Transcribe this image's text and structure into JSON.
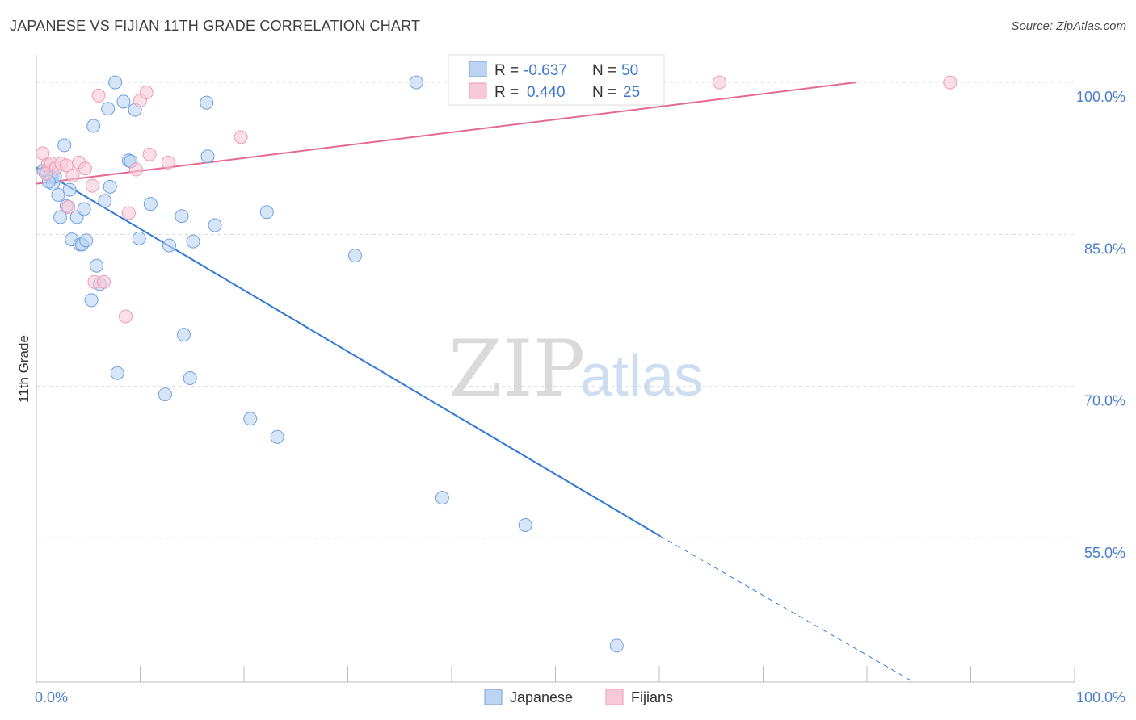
{
  "header": {
    "title": "JAPANESE VS FIJIAN 11TH GRADE CORRELATION CHART",
    "source": "Source: ZipAtlas.com"
  },
  "watermark": {
    "zip": "ZIP",
    "atlas": "atlas"
  },
  "chart_data": {
    "type": "scatter",
    "title": "JAPANESE VS FIJIAN 11TH GRADE CORRELATION CHART",
    "xlabel": "",
    "ylabel": "11th Grade",
    "xlim": [
      0,
      100
    ],
    "ylim": [
      40.8,
      101.8
    ],
    "x_tick_labels": [
      {
        "value": 0,
        "label": "0.0%"
      },
      {
        "value": 100,
        "label": "100.0%"
      }
    ],
    "y_tick_labels": [
      {
        "value": 100,
        "label": "100.0%"
      },
      {
        "value": 85,
        "label": "85.0%"
      },
      {
        "value": 70,
        "label": "70.0%"
      },
      {
        "value": 55,
        "label": "55.0%"
      }
    ],
    "y_gridlines": [
      100,
      85,
      70,
      55
    ],
    "grid": true,
    "legend_position": "bottom-center",
    "series": [
      {
        "name": "Japanese",
        "color": "#6fa0e0",
        "fill": "#bcd3f2",
        "line_color": "#3278d6",
        "R": "-0.637",
        "N": "50",
        "trend": {
          "x0": 0,
          "y0": 91.6,
          "x1": 60.1,
          "y1": 55.2,
          "dash_to_x": 84.5,
          "dash_to_y": 40.8
        },
        "points": [
          [
            0.7,
            91.3
          ],
          [
            1.0,
            91.2
          ],
          [
            1.3,
            90.8
          ],
          [
            1.5,
            90.6
          ],
          [
            1.6,
            90.0
          ],
          [
            1.8,
            90.7
          ],
          [
            2.1,
            88.9
          ],
          [
            2.3,
            86.7
          ],
          [
            2.7,
            93.8
          ],
          [
            2.9,
            87.8
          ],
          [
            3.2,
            89.4
          ],
          [
            3.4,
            84.5
          ],
          [
            3.9,
            86.7
          ],
          [
            4.2,
            84.0
          ],
          [
            4.4,
            84.0
          ],
          [
            4.6,
            87.5
          ],
          [
            4.8,
            84.4
          ],
          [
            5.3,
            78.5
          ],
          [
            5.5,
            95.7
          ],
          [
            5.8,
            81.9
          ],
          [
            6.1,
            80.1
          ],
          [
            6.6,
            88.3
          ],
          [
            6.9,
            97.4
          ],
          [
            7.1,
            89.7
          ],
          [
            7.6,
            100.0
          ],
          [
            7.8,
            71.3
          ],
          [
            8.4,
            98.1
          ],
          [
            8.9,
            92.3
          ],
          [
            9.1,
            92.2
          ],
          [
            9.5,
            97.3
          ],
          [
            9.9,
            84.6
          ],
          [
            11.0,
            88.0
          ],
          [
            12.4,
            69.2
          ],
          [
            12.8,
            83.9
          ],
          [
            14.0,
            86.8
          ],
          [
            14.2,
            75.1
          ],
          [
            14.8,
            70.8
          ],
          [
            15.1,
            84.3
          ],
          [
            16.4,
            98.0
          ],
          [
            16.5,
            92.7
          ],
          [
            17.2,
            85.9
          ],
          [
            20.6,
            66.8
          ],
          [
            22.2,
            87.2
          ],
          [
            23.2,
            65.0
          ],
          [
            30.7,
            82.9
          ],
          [
            36.6,
            100.0
          ],
          [
            39.1,
            59.0
          ],
          [
            47.1,
            56.3
          ],
          [
            55.9,
            44.4
          ],
          [
            1.2,
            90.2
          ]
        ]
      },
      {
        "name": "Fijians",
        "color": "#ee9ab5",
        "fill": "#f8c9d8",
        "line_color": "#e46a91",
        "R": "0.440",
        "N": "25",
        "trend": {
          "x0": 0,
          "y0": 90.0,
          "x1": 78.9,
          "y1": 100.0
        },
        "points": [
          [
            0.6,
            93.0
          ],
          [
            1.1,
            91.9
          ],
          [
            1.4,
            92.0
          ],
          [
            1.9,
            91.6
          ],
          [
            2.4,
            92.0
          ],
          [
            2.9,
            91.8
          ],
          [
            3.1,
            87.7
          ],
          [
            3.5,
            90.8
          ],
          [
            4.1,
            92.1
          ],
          [
            4.7,
            91.5
          ],
          [
            5.4,
            89.8
          ],
          [
            5.6,
            80.3
          ],
          [
            6.0,
            98.7
          ],
          [
            6.5,
            80.3
          ],
          [
            8.6,
            76.9
          ],
          [
            8.9,
            87.1
          ],
          [
            9.6,
            91.4
          ],
          [
            10.0,
            98.2
          ],
          [
            10.6,
            99.0
          ],
          [
            10.9,
            92.9
          ],
          [
            12.7,
            92.1
          ],
          [
            19.7,
            94.6
          ],
          [
            65.8,
            100.0
          ],
          [
            88.0,
            100.0
          ],
          [
            0.9,
            91.0
          ]
        ]
      }
    ]
  }
}
